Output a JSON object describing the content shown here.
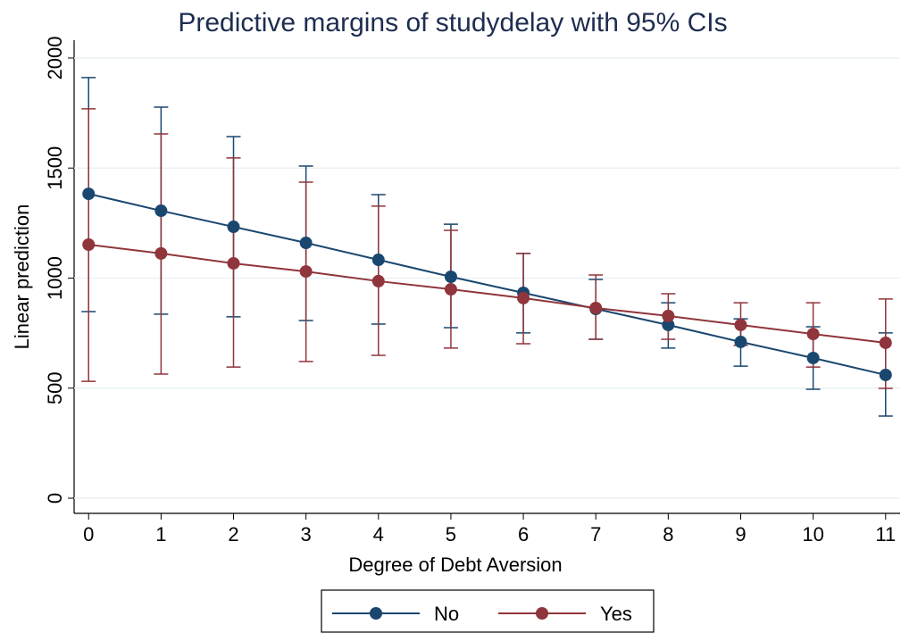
{
  "chart_data": {
    "type": "line",
    "title": "Predictive margins of studydelay with 95% CIs",
    "x_label": "Degree of Debt Aversion",
    "y_label": "Linear prediction",
    "x": [
      0,
      1,
      2,
      3,
      4,
      5,
      6,
      7,
      8,
      9,
      10,
      11
    ],
    "xlim": [
      -0.2,
      11.2
    ],
    "xticks": [
      0,
      1,
      2,
      3,
      4,
      5,
      6,
      7,
      8,
      9,
      10,
      11
    ],
    "ylim": [
      -69,
      2081
    ],
    "yticks": [
      0,
      500,
      1000,
      1500,
      2000
    ],
    "grid": true,
    "legend": "bottom",
    "series": [
      {
        "name": "No",
        "color": "#1a476f",
        "values": [
          1383,
          1306,
          1233,
          1160,
          1083,
          1006,
          933,
          860,
          787,
          710,
          637,
          560
        ],
        "ci_low": [
          848,
          836,
          824,
          807,
          791,
          775,
          751,
          722,
          682,
          600,
          495,
          373
        ],
        "ci_high": [
          1911,
          1777,
          1643,
          1509,
          1379,
          1245,
          1112,
          994,
          888,
          815,
          779,
          751
        ]
      },
      {
        "name": "Yes",
        "color": "#90353b",
        "values": [
          1152,
          1112,
          1067,
          1030,
          986,
          949,
          909,
          864,
          828,
          787,
          746,
          706
        ],
        "ci_low": [
          531,
          564,
          596,
          621,
          649,
          682,
          702,
          722,
          722,
          694,
          596,
          499
        ],
        "ci_high": [
          1769,
          1655,
          1546,
          1436,
          1327,
          1217,
          1112,
          1014,
          929,
          888,
          888,
          905
        ]
      }
    ]
  }
}
